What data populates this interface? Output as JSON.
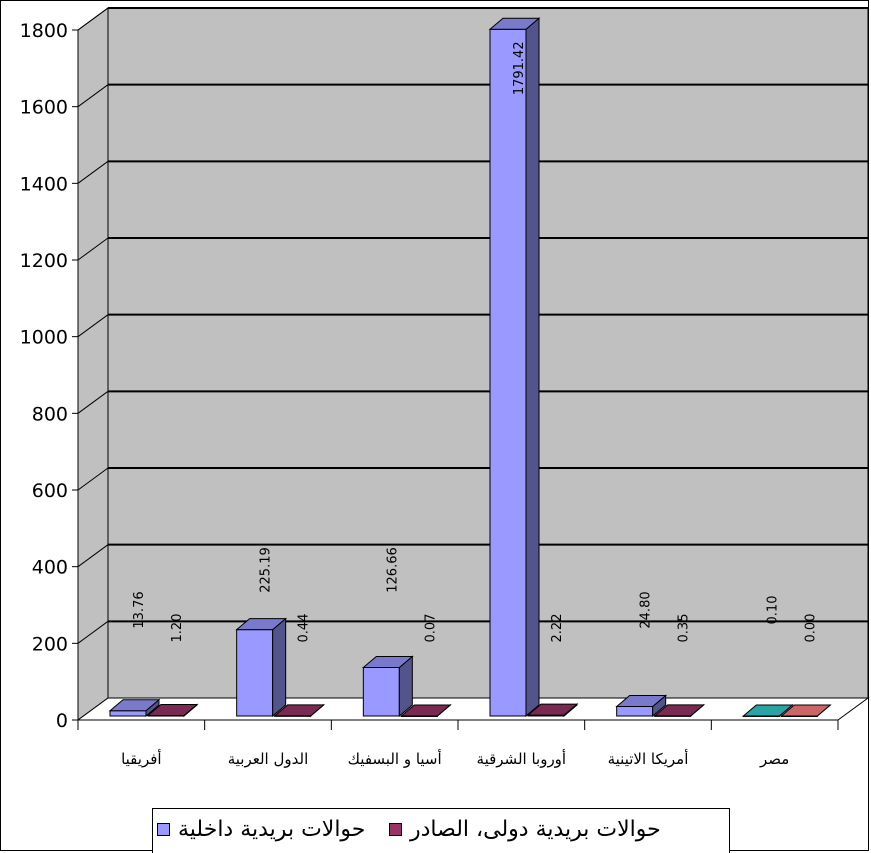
{
  "chart_data": {
    "type": "bar",
    "three_d": true,
    "categories": [
      "أفريقيا",
      "الدول العربية",
      "أسيا و البسفيك",
      "أوروبا الشرقية",
      "أمريكا الاتينية",
      "مصر"
    ],
    "series": [
      {
        "name": "حوالات بريدية داخلية",
        "values": [
          13.76,
          225.19,
          126.66,
          1791.42,
          24.8,
          0.1
        ],
        "labels": [
          "13.76",
          "225.19",
          "126.66",
          "1791.42",
          "24.80",
          "0.10"
        ],
        "color": "#9999ff"
      },
      {
        "name": "حوالات بريدية دولى، الصادر",
        "values": [
          1.2,
          0.44,
          0.07,
          2.22,
          0.35,
          0.0
        ],
        "labels": [
          "1.20",
          "0.44",
          "0.07",
          "2.22",
          "0.35",
          "0.00"
        ],
        "color": "#993366"
      }
    ],
    "highlight_category_colors": [
      "#33cccc",
      "#ff8080"
    ],
    "y_ticks": [
      "0",
      "200",
      "400",
      "600",
      "800",
      "1000",
      "1200",
      "1400",
      "1600",
      "1800"
    ],
    "ylim": [
      0,
      1800
    ],
    "grid": true,
    "wall_color": "#c0c0c0",
    "legend_position": "bottom"
  }
}
